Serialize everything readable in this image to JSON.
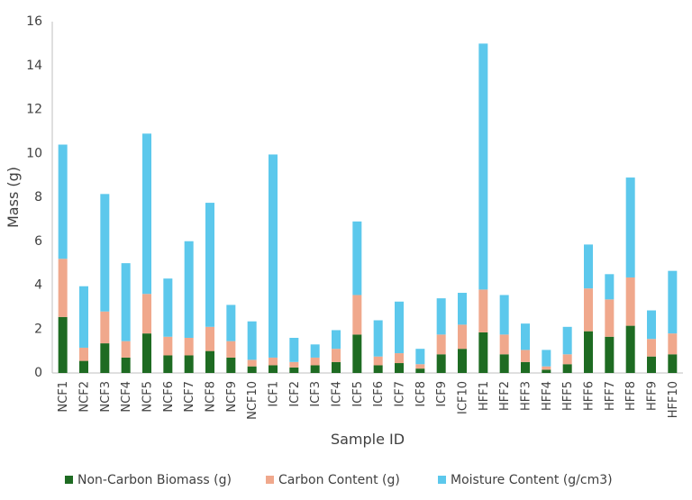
{
  "chart_data": {
    "type": "bar",
    "stacked": true,
    "xlabel": "Sample ID",
    "ylabel": "Mass (g)",
    "ylim": [
      0,
      16
    ],
    "yticks": [
      0,
      2,
      4,
      6,
      8,
      10,
      12,
      14,
      16
    ],
    "grid": false,
    "legend_position": "bottom",
    "categories": [
      "NCF1",
      "NCF2",
      "NCF3",
      "NCF4",
      "NCF5",
      "NCF6",
      "NCF7",
      "NCF8",
      "NCF9",
      "NCF10",
      "ICF1",
      "ICF2",
      "ICF3",
      "ICF4",
      "ICF5",
      "ICF6",
      "ICF7",
      "ICF8",
      "ICF9",
      "ICF10",
      "HFF1",
      "HFF2",
      "HFF3",
      "HFF4",
      "HFF5",
      "HFF6",
      "HFF7",
      "HFF8",
      "HFF9",
      "HFF10"
    ],
    "series": [
      {
        "name": "Non-Carbon Biomass (g)",
        "color": "#1e6b22",
        "values": [
          2.55,
          0.55,
          1.35,
          0.7,
          1.8,
          0.8,
          0.8,
          1.0,
          0.7,
          0.3,
          0.35,
          0.25,
          0.35,
          0.5,
          1.75,
          0.35,
          0.45,
          0.2,
          0.85,
          1.1,
          1.85,
          0.85,
          0.5,
          0.15,
          0.4,
          1.9,
          1.65,
          2.15,
          0.75,
          0.85
        ]
      },
      {
        "name": "Carbon Content (g)",
        "color": "#f0a88c",
        "values": [
          2.65,
          0.6,
          1.45,
          0.75,
          1.8,
          0.85,
          0.8,
          1.1,
          0.75,
          0.3,
          0.35,
          0.25,
          0.35,
          0.6,
          1.8,
          0.4,
          0.45,
          0.2,
          0.9,
          1.1,
          1.95,
          0.9,
          0.55,
          0.15,
          0.45,
          1.95,
          1.7,
          2.2,
          0.8,
          0.95
        ]
      },
      {
        "name": "Moisture Content (g/cm3)",
        "color": "#5cc8ec",
        "values": [
          5.2,
          2.8,
          5.35,
          3.55,
          7.3,
          2.65,
          4.4,
          5.65,
          1.65,
          1.75,
          9.25,
          1.1,
          0.6,
          0.85,
          3.35,
          1.65,
          2.35,
          0.7,
          1.65,
          1.45,
          11.2,
          1.8,
          1.2,
          0.75,
          1.25,
          2.0,
          1.15,
          4.55,
          1.3,
          2.85
        ]
      }
    ]
  }
}
